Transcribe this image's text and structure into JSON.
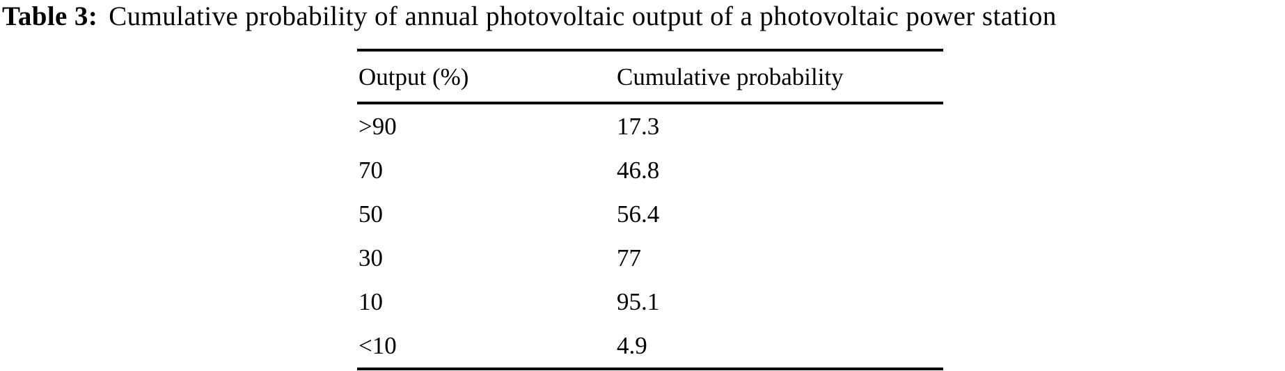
{
  "caption": {
    "label": "Table 3:",
    "text": "Cumulative probability of annual photovoltaic output of a photovoltaic power station"
  },
  "table": {
    "columns": [
      "Output (%)",
      "Cumulative probability"
    ],
    "rows": [
      {
        "output": ">90",
        "probability": "17.3"
      },
      {
        "output": "70",
        "probability": "46.8"
      },
      {
        "output": "50",
        "probability": "56.4"
      },
      {
        "output": "30",
        "probability": "77"
      },
      {
        "output": "10",
        "probability": "95.1"
      },
      {
        "output": "<10",
        "probability": "4.9"
      }
    ]
  },
  "colors": {
    "text": "#000000",
    "background": "#ffffff",
    "rule": "#000000"
  }
}
